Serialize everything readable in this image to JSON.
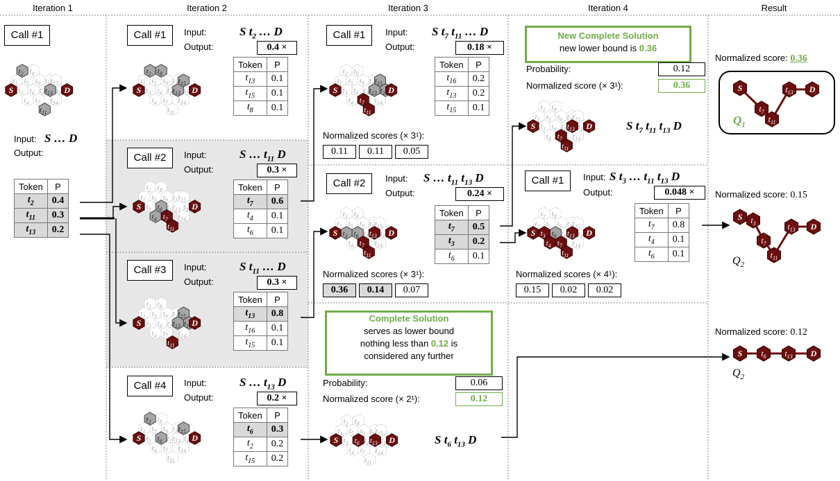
{
  "headers": [
    "Iteration 1",
    "Iteration 2",
    "Iteration 3",
    "Iteration 4",
    "Result"
  ],
  "it1": {
    "call": "Call #1",
    "input_label": "Input:",
    "input_seq": "S … D",
    "output_label": "Output:",
    "table": {
      "head": [
        "Token",
        "P"
      ],
      "rows": [
        [
          "t2",
          "0.4"
        ],
        [
          "t11",
          "0.3"
        ],
        [
          "t13",
          "0.2"
        ]
      ]
    }
  },
  "it2": [
    {
      "call": "Call #1",
      "input": "S t2 … D",
      "output": "0.4 ×",
      "rows": [
        [
          "t13",
          "0.1"
        ],
        [
          "t15",
          "0.1"
        ],
        [
          "t8",
          "0.1"
        ]
      ],
      "hl": -1
    },
    {
      "call": "Call #2",
      "input": "S … t11 D",
      "output": "0.3 ×",
      "rows": [
        [
          "t7",
          "0.6"
        ],
        [
          "t4",
          "0.1"
        ],
        [
          "t6",
          "0.1"
        ]
      ],
      "hl": 0
    },
    {
      "call": "Call #3",
      "input": "S t11 … D",
      "output": "0.3 ×",
      "rows": [
        [
          "t13",
          "0.8"
        ],
        [
          "t16",
          "0.1"
        ],
        [
          "t15",
          "0.1"
        ]
      ],
      "hl": 0
    },
    {
      "call": "Call #4",
      "input": "S … t13 D",
      "output": "0.2 ×",
      "rows": [
        [
          "t6",
          "0.3"
        ],
        [
          "t2",
          "0.2"
        ],
        [
          "t15",
          "0.2"
        ]
      ],
      "hl": 0
    }
  ],
  "it3": [
    {
      "call": "Call #1",
      "input": "S t7 t11 … D",
      "output": "0.18 ×",
      "rows": [
        [
          "t16",
          "0.2"
        ],
        [
          "t13",
          "0.2"
        ],
        [
          "t15",
          "0.1"
        ]
      ],
      "ns_label": "Normalized scores (× 3¹):",
      "ns": [
        "0.11",
        "0.11",
        "0.05"
      ]
    },
    {
      "call": "Call #2",
      "input": "S … t11 t13 D",
      "output": "0.24 ×",
      "rows": [
        [
          "t7",
          "0.5"
        ],
        [
          "t3",
          "0.2"
        ],
        [
          "t6",
          "0.1"
        ]
      ],
      "ns_label": "Normalized scores (× 3¹):",
      "ns": [
        "0.36",
        "0.14",
        "0.07"
      ]
    }
  ],
  "complete": {
    "title": "Complete Solution",
    "l1": "serves as lower bound",
    "l2a": "nothing less than ",
    "l2b": "0.12",
    "l2c": " is",
    "l3": "considered any further",
    "prob_label": "Probability:",
    "prob": "0.06",
    "ns_label": "Normalized score (× 2¹):",
    "ns": "0.12",
    "seq": "S t6 t13 D"
  },
  "newcomplete": {
    "title": "New Complete Solution",
    "l1a": "new lower bound is ",
    "l1b": "0.36",
    "prob_label": "Probability:",
    "prob": "0.12",
    "ns_label": "Normalized score (× 3¹):",
    "ns": "0.36",
    "seq": "S t7 t11 t13 D"
  },
  "it4": {
    "call": "Call #1",
    "input": "S t3 … t11 t13 D",
    "output": "0.048 ×",
    "rows": [
      [
        "t7",
        "0.8"
      ],
      [
        "t4",
        "0.1"
      ],
      [
        "t6",
        "0.1"
      ]
    ],
    "ns_label": "Normalized scores (× 4¹):",
    "ns": [
      "0.15",
      "0.02",
      "0.02"
    ]
  },
  "result": [
    {
      "label": "Normalized score:",
      "score": "0.36",
      "name": "Q1"
    },
    {
      "label": "Normalized score:",
      "score": "0.15",
      "name": "Q2"
    },
    {
      "label": "Normalized score:",
      "score": "0.12",
      "name": "Q2"
    }
  ],
  "hexlabels": {
    "S": "S",
    "D": "D",
    "tokens": [
      "t1",
      "t2",
      "t3",
      "t4",
      "t5",
      "t6",
      "t7",
      "t8",
      "t9",
      "t10",
      "t11",
      "t12",
      "t13",
      "t14",
      "t15",
      "t16"
    ]
  },
  "colors": {
    "maroon": "#6b0f0f",
    "gray": "#a6a6a6",
    "green": "#70ad47",
    "shade": "#e7e7e7"
  }
}
